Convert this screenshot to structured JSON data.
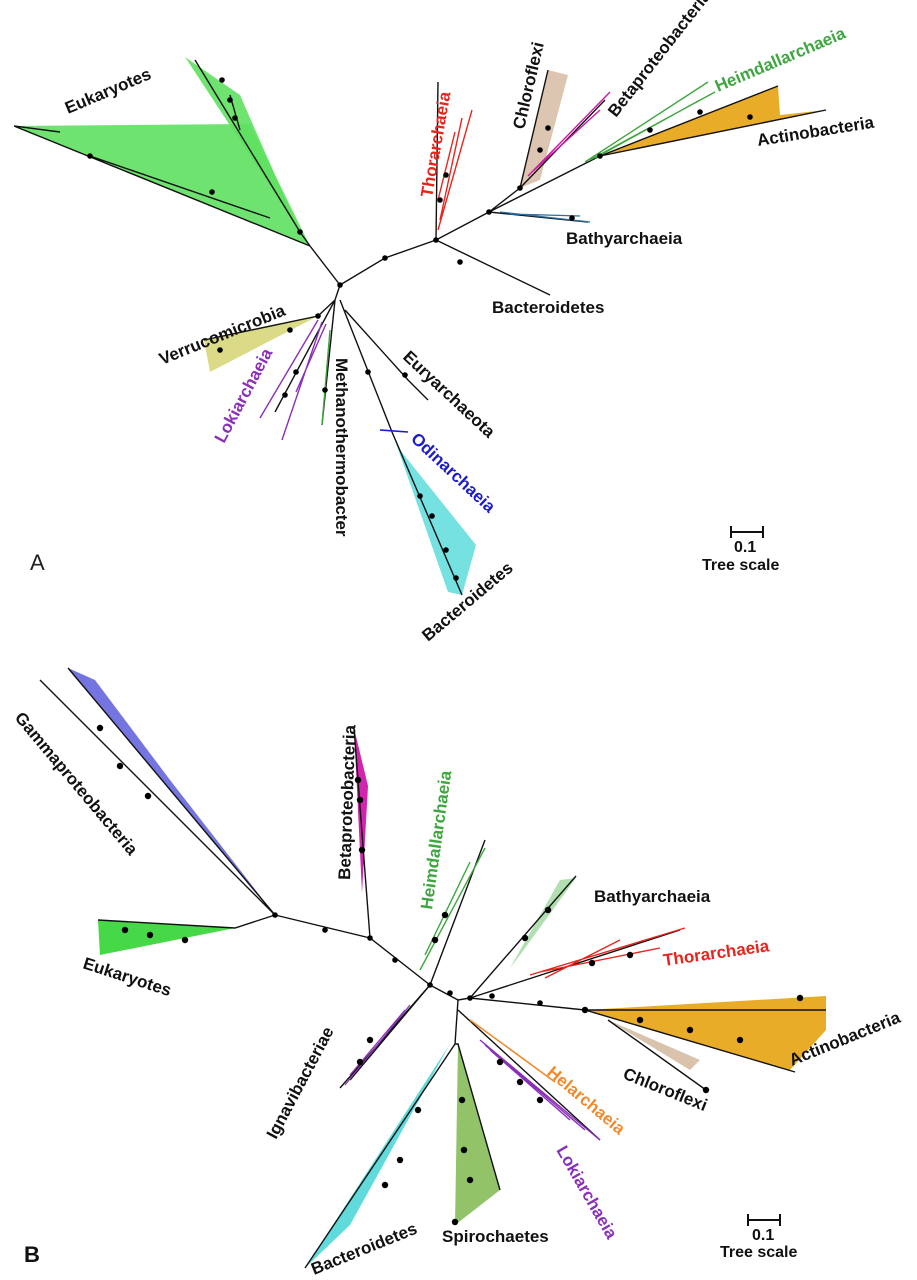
{
  "panel_a": {
    "letter": "A",
    "labels": {
      "eukaryotes": "Eukaryotes",
      "thorarchaeia": "Thorarchaeia",
      "chloroflexi": "Chloroflexi",
      "betaproteobacteria": "Betaproteobacteria",
      "heimdallarchaeia": "Heimdallarchaeia",
      "actinobacteria": "Actinobacteria",
      "bathyarchaeia": "Bathyarchaeia",
      "bacteroidetes_top": "Bacteroidetes",
      "verrucomicrobia": "Verrucomicrobia",
      "lokiarchaeia": "Lokiarchaeia",
      "methanothermobacter": "Methanothermobacter",
      "euryarchaeota": "Euryarchaeota",
      "odinarchaeia": "Odinarchaeia",
      "bacteroidetes_bottom": "Bacteroidetes"
    },
    "scale_value": "0.1",
    "scale_label": "Tree scale"
  },
  "panel_b": {
    "letter": "B",
    "labels": {
      "gammaproteobacteria": "Gammaproteobacteria",
      "betaproteobacteria": "Betaproteobacteria",
      "heimdallarchaeia": "Heimdallarchaeia",
      "bathyarchaeia": "Bathyarchaeia",
      "thorarchaeia": "Thorarchaeia",
      "eukaryotes": "Eukaryotes",
      "actinobacteria": "Actinobacteria",
      "ignavibacteriae": "Ignavibacteriae",
      "chloroflexi": "Chloroflexi",
      "helarchaeia": "Helarchaeia",
      "lokiarchaeia": "Lokiarchaeia",
      "bacteroidetes": "Bacteroidetes",
      "spirochaetes": "Spirochaetes"
    },
    "scale_value": "0.1",
    "scale_label": "Tree scale"
  },
  "colors": {
    "eukaryotes": "#5fe05f",
    "thorarchaeia": "#e8251c",
    "heimdallarchaeia": "#3fa63f",
    "actinobacteria": "#e7a81e",
    "odinarchaeia": "#1c1cc8",
    "lokiarchaeia": "#8a2fb8",
    "verrucomicrobia": "#d6d67a",
    "gammaproteobacteria": "#6e6ee0",
    "betaproteobacteria": "#d018a8",
    "helarchaeia": "#f08a2c",
    "bacteroidetes": "#66dede",
    "spirochaetes": "#8cc060",
    "chloroflexi": "#d8c0a8"
  }
}
